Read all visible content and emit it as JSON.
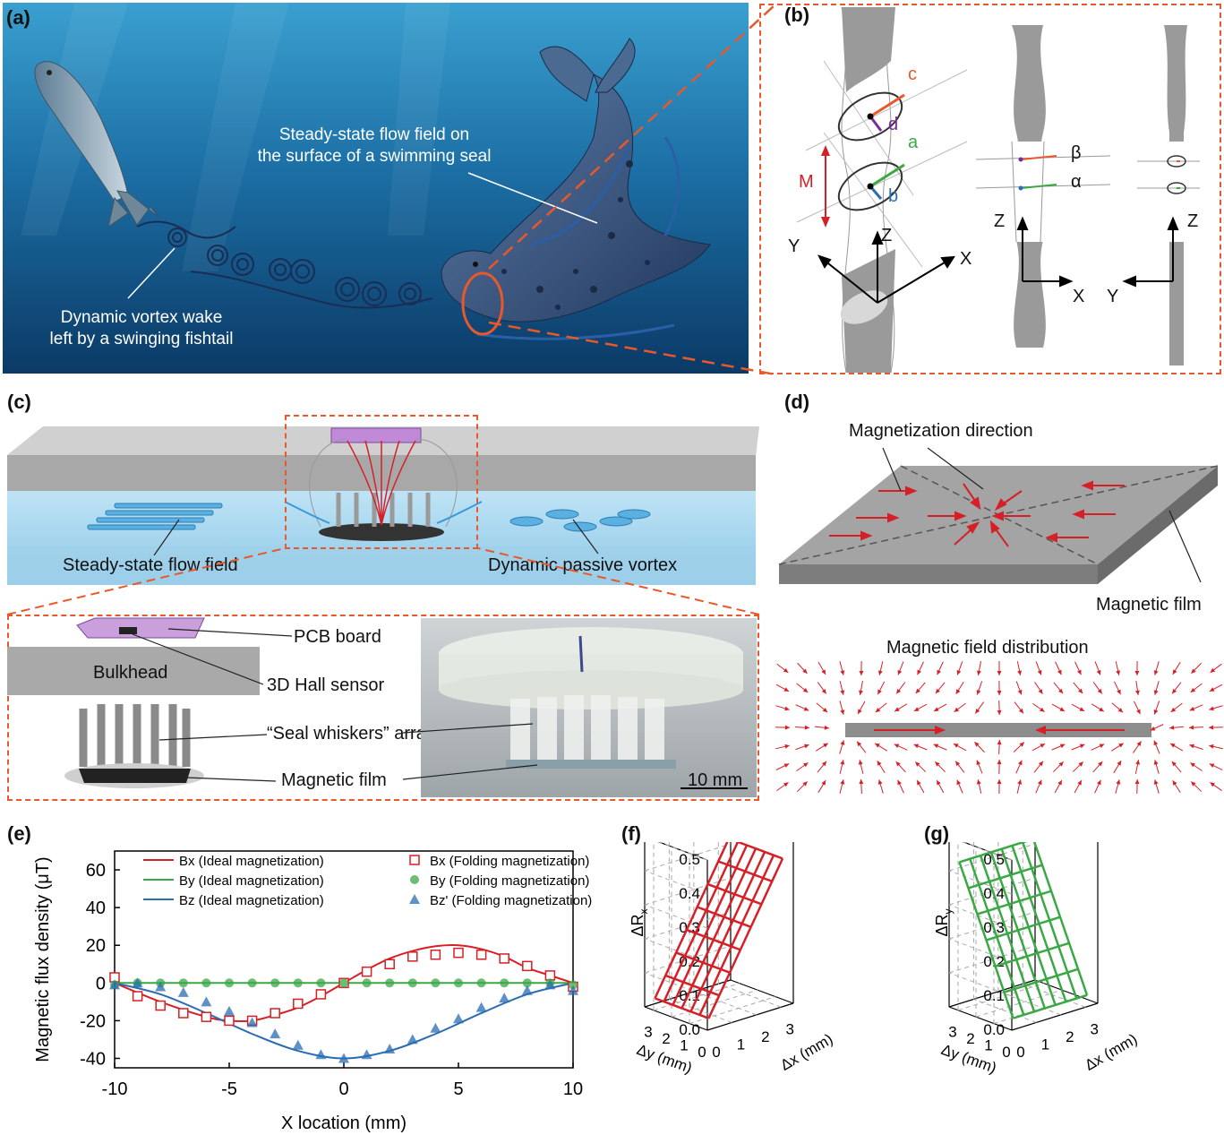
{
  "panels": {
    "a": {
      "label": "(a)",
      "seal_caption": "Steady-state flow field on\nthe surface of a swimming seal",
      "seal_caption_line1": "Steady-state flow field on",
      "seal_caption_line2": "the surface of a swimming seal",
      "fish_caption_line1": "Dynamic vortex wake",
      "fish_caption_line2": "left by a swinging fishtail"
    },
    "b": {
      "label": "(b)",
      "letters": {
        "c": "c",
        "d": "d",
        "a": "a",
        "b": "b",
        "M": "M",
        "beta": "β",
        "alpha": "α"
      },
      "axes": {
        "X": "X",
        "Y": "Y",
        "Z": "Z"
      }
    },
    "c": {
      "label": "(c)",
      "flow_left": "Steady-state flow field",
      "flow_right": "Dynamic passive vortex",
      "pcb": "PCB board",
      "bulkhead": "Bulkhead",
      "hall": "3D Hall sensor",
      "whiskers": "“Seal whiskers” array",
      "film": "Magnetic film",
      "scale": "10 mm"
    },
    "d": {
      "label": "(d)",
      "magnetization": "Magnetization direction",
      "film": "Magnetic film",
      "distribution": "Magnetic field distribution"
    },
    "e": {
      "label": "(e)"
    },
    "f": {
      "label": "(f)"
    },
    "g": {
      "label": "(g)"
    }
  },
  "colors": {
    "orange_dash": "#e8582a",
    "red": "#d62027",
    "green": "#3aa845",
    "blue": "#2b6cb3",
    "ocean_top": "#1e7fb8",
    "ocean_bottom": "#0b3a66"
  },
  "chart_data": [
    {
      "id": "e",
      "type": "line",
      "xlabel": "X location (mm)",
      "ylabel": "Magnetic flux density (μT)",
      "xlim": [
        -10,
        10
      ],
      "ylim": [
        -45,
        70
      ],
      "xticks": [
        -10,
        -5,
        0,
        5,
        10
      ],
      "yticks": [
        -40,
        -20,
        0,
        20,
        40,
        60
      ],
      "legend_position": "top",
      "series": [
        {
          "name": "Bx (Ideal magnetization)",
          "style": "line",
          "color": "#d62027",
          "x": [
            -10,
            -8,
            -6,
            -5,
            -4,
            -3,
            -2,
            -1,
            0,
            1,
            2,
            3,
            4,
            5,
            6,
            7,
            8,
            9,
            10
          ],
          "y": [
            0,
            -10,
            -18,
            -20,
            -20,
            -17,
            -13,
            -7,
            0,
            7,
            13,
            17,
            19.5,
            20,
            18,
            14,
            8,
            4,
            0
          ]
        },
        {
          "name": "By (Ideal magnetization)",
          "style": "line",
          "color": "#3aa845",
          "x": [
            -10,
            10
          ],
          "y": [
            0,
            0
          ]
        },
        {
          "name": "Bz (Ideal magnetization)",
          "style": "line",
          "color": "#2b6cb3",
          "x": [
            -10,
            -8,
            -6,
            -4,
            -2,
            0,
            2,
            4,
            6,
            8,
            10
          ],
          "y": [
            0,
            -6,
            -16,
            -27,
            -36,
            -40,
            -36,
            -27,
            -16,
            -6,
            0
          ]
        },
        {
          "name": "Bx (Folding magnetization)",
          "style": "square",
          "color": "#d62027",
          "x": [
            -10,
            -9,
            -8,
            -7,
            -6,
            -5,
            -4,
            -3,
            -2,
            -1,
            0,
            1,
            2,
            3,
            4,
            5,
            6,
            7,
            8,
            9,
            10
          ],
          "y": [
            3,
            -7,
            -12,
            -16,
            -18,
            -20,
            -20,
            -16,
            -11,
            -6,
            0,
            6,
            10,
            14,
            15,
            16,
            15,
            13,
            9,
            4,
            -2
          ]
        },
        {
          "name": "By (Folding magnetization)",
          "style": "circle",
          "color": "#3aa845",
          "x": [
            -10,
            -9,
            -8,
            -7,
            -6,
            -5,
            -4,
            -3,
            -2,
            -1,
            0,
            1,
            2,
            3,
            4,
            5,
            6,
            7,
            8,
            9,
            10
          ],
          "y": [
            -1,
            0,
            0,
            0,
            0,
            0,
            0,
            0,
            0,
            0,
            0,
            0,
            0,
            0,
            0,
            0,
            0,
            0,
            0,
            0,
            -1
          ]
        },
        {
          "name": "Bz' (Folding magnetization)",
          "style": "triangle",
          "color": "#2b6cb3",
          "x": [
            -10,
            -9,
            -8,
            -7,
            -6,
            -5,
            -4,
            -3,
            -2,
            -1,
            0,
            1,
            2,
            3,
            4,
            5,
            6,
            7,
            8,
            9,
            10
          ],
          "y": [
            -1,
            0,
            -2,
            -5,
            -10,
            -15,
            -21,
            -27,
            -33,
            -38,
            -40,
            -38,
            -35,
            -30,
            -24,
            -19,
            -13,
            -8,
            -4,
            -1,
            -4
          ]
        }
      ]
    },
    {
      "id": "f",
      "type": "surface3d",
      "zlabel": "ΔR",
      "zlabel_sub": "x",
      "xlabel": "Δx (mm)",
      "ylabel": "Δy (mm)",
      "zticks": [
        "0.0",
        "0.1",
        "0.2",
        "0.3",
        "0.4",
        "0.5"
      ],
      "xticks": [
        "0",
        "1",
        "2",
        "3"
      ],
      "yticks": [
        "0",
        "1",
        "2",
        "3"
      ],
      "color": "#d62027",
      "description_values": {
        "z_at_dx0": 0.0,
        "z_at_dx3": 0.4
      }
    },
    {
      "id": "g",
      "type": "surface3d",
      "zlabel": "ΔR",
      "zlabel_sub": "y",
      "xlabel": "Δx (mm)",
      "ylabel": "Δy (mm)",
      "zticks": [
        "0.0",
        "0.1",
        "0.2",
        "0.3",
        "0.4",
        "0.5"
      ],
      "xticks": [
        "0",
        "1",
        "2",
        "3"
      ],
      "yticks": [
        "0",
        "1",
        "2",
        "3"
      ],
      "color": "#3aa845",
      "description_values": {
        "z_at_dy0": 0.0,
        "z_at_dy3": 0.4
      }
    }
  ]
}
